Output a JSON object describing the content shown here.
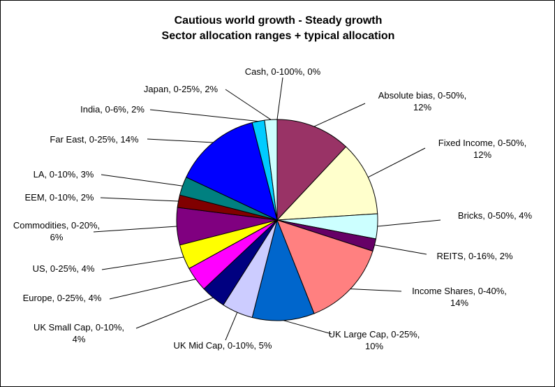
{
  "chart_data": {
    "type": "pie",
    "title": [
      "Cautious world growth - Steady growth",
      "Sector allocation ranges + typical allocation"
    ],
    "slices": [
      {
        "label": [
          "Cash, 0-100%, 0%"
        ],
        "value": 0,
        "color": "#ffffff"
      },
      {
        "label": [
          "Absolute bias, 0-50%,",
          "12%"
        ],
        "value": 12,
        "color": "#993366"
      },
      {
        "label": [
          "Fixed Income, 0-50%,",
          "12%"
        ],
        "value": 12,
        "color": "#ffffcc"
      },
      {
        "label": [
          "Bricks, 0-50%, 4%"
        ],
        "value": 4,
        "color": "#ccffff"
      },
      {
        "label": [
          "REITS, 0-16%, 2%"
        ],
        "value": 2,
        "color": "#660066"
      },
      {
        "label": [
          "Income Shares, 0-40%,",
          "14%"
        ],
        "value": 14,
        "color": "#ff8080"
      },
      {
        "label": [
          "UK Large Cap, 0-25%,",
          "10%"
        ],
        "value": 10,
        "color": "#0066cc"
      },
      {
        "label": [
          "UK Mid Cap, 0-10%, 5%"
        ],
        "value": 5,
        "color": "#ccccff"
      },
      {
        "label": [
          "UK Small Cap, 0-10%,",
          "4%"
        ],
        "value": 4,
        "color": "#000080"
      },
      {
        "label": [
          "Europe, 0-25%, 4%"
        ],
        "value": 4,
        "color": "#ff00ff"
      },
      {
        "label": [
          "US, 0-25%, 4%"
        ],
        "value": 4,
        "color": "#ffff00"
      },
      {
        "label": [
          "Commodities, 0-20%,",
          "6%"
        ],
        "value": 6,
        "color": "#800080"
      },
      {
        "label": [
          "EEM, 0-10%, 2%"
        ],
        "value": 2,
        "color": "#800000"
      },
      {
        "label": [
          "LA, 0-10%, 3%"
        ],
        "value": 3,
        "color": "#008080"
      },
      {
        "label": [
          "Far East, 0-25%, 14%"
        ],
        "value": 14,
        "color": "#0000ff"
      },
      {
        "label": [
          "India, 0-6%, 2%"
        ],
        "value": 2,
        "color": "#00ccff"
      },
      {
        "label": [
          "Japan, 0-25%, 2%"
        ],
        "value": 2,
        "color": "#ccffff"
      }
    ]
  }
}
